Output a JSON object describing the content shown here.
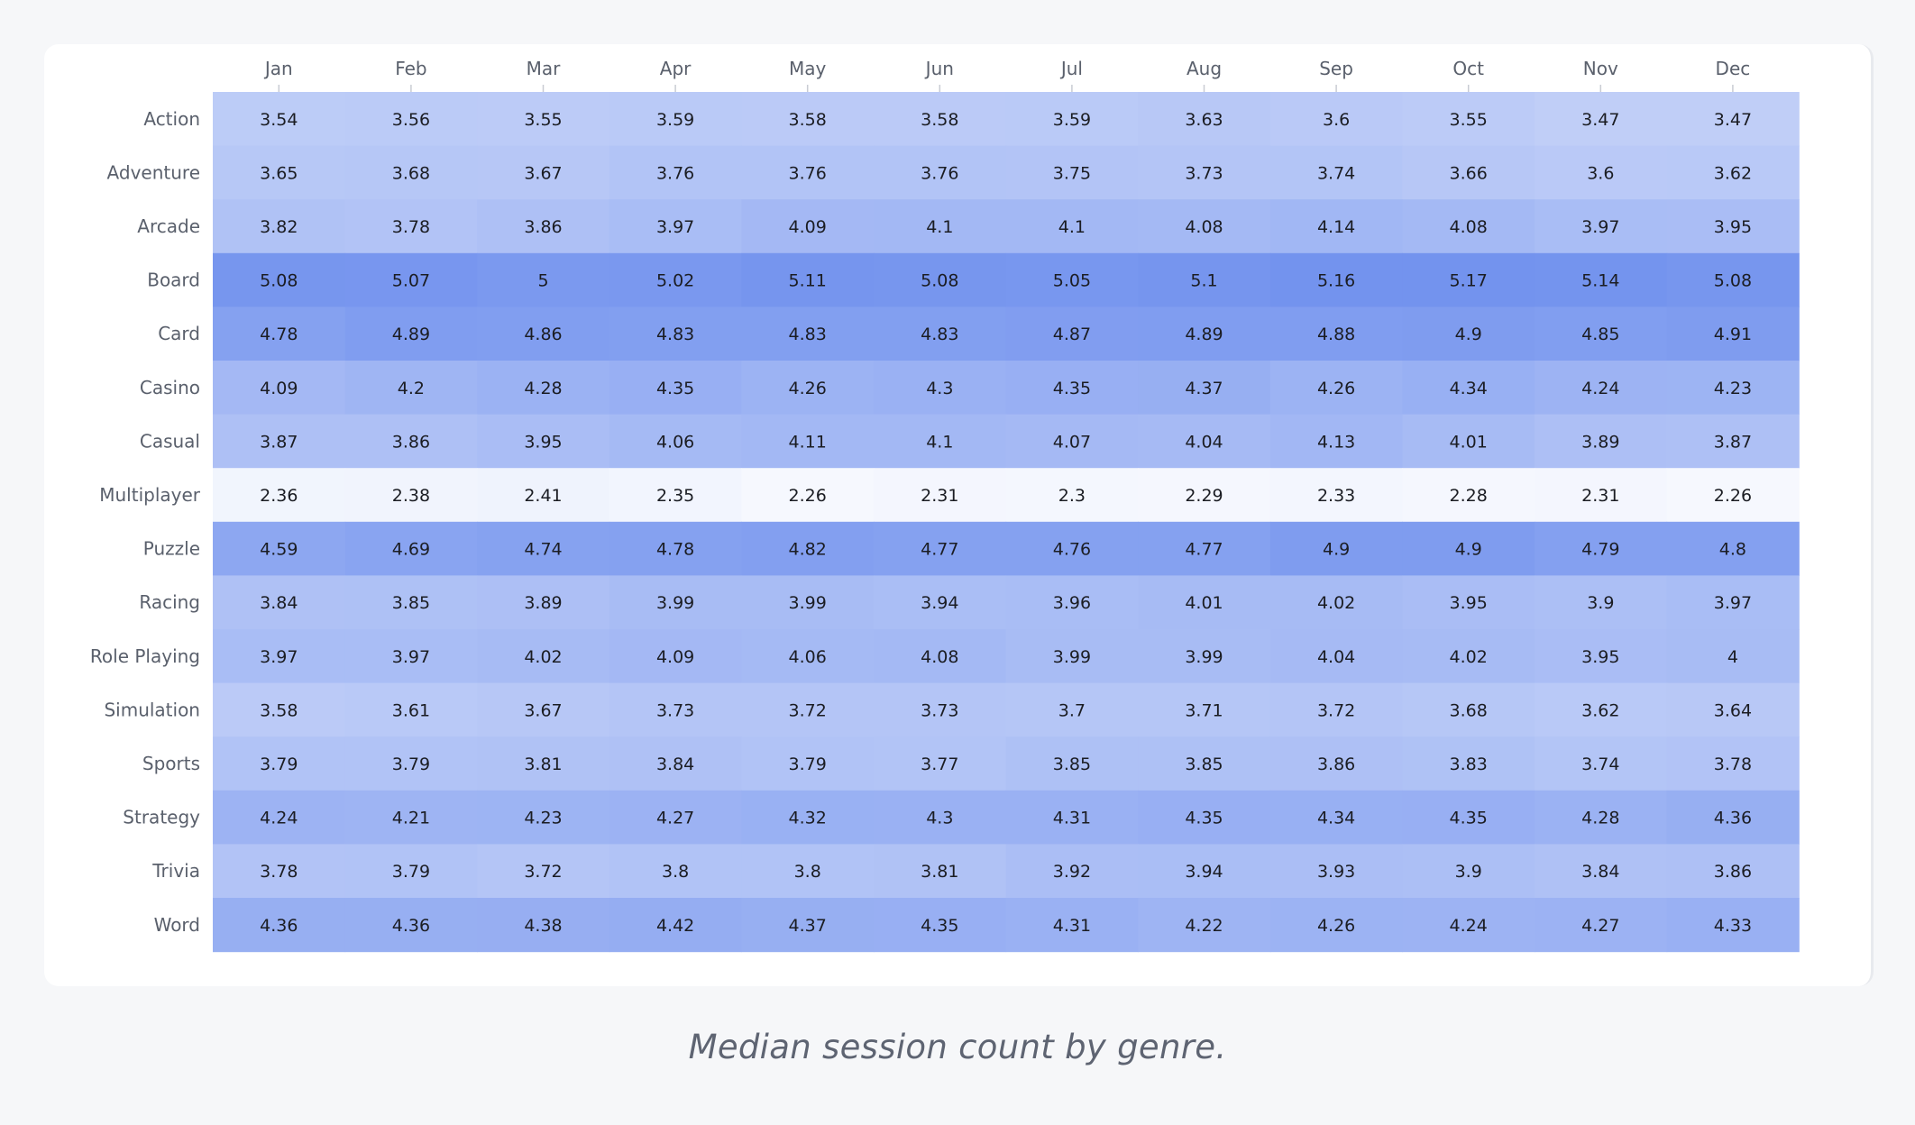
{
  "chart_data": {
    "type": "heatmap",
    "x_labels": [
      "Jan",
      "Feb",
      "Mar",
      "Apr",
      "May",
      "Jun",
      "Jul",
      "Aug",
      "Sep",
      "Oct",
      "Nov",
      "Dec"
    ],
    "y_labels": [
      "Action",
      "Adventure",
      "Arcade",
      "Board",
      "Card",
      "Casino",
      "Casual",
      "Multiplayer",
      "Puzzle",
      "Racing",
      "Role Playing",
      "Simulation",
      "Sports",
      "Strategy",
      "Trivia",
      "Word"
    ],
    "values": [
      [
        3.54,
        3.56,
        3.55,
        3.59,
        3.58,
        3.58,
        3.59,
        3.63,
        3.6,
        3.55,
        3.47,
        3.47
      ],
      [
        3.65,
        3.68,
        3.67,
        3.76,
        3.76,
        3.76,
        3.75,
        3.73,
        3.74,
        3.66,
        3.6,
        3.62
      ],
      [
        3.82,
        3.78,
        3.86,
        3.97,
        4.09,
        4.1,
        4.1,
        4.08,
        4.14,
        4.08,
        3.97,
        3.95
      ],
      [
        5.08,
        5.07,
        5,
        5.02,
        5.11,
        5.08,
        5.05,
        5.1,
        5.16,
        5.17,
        5.14,
        5.08
      ],
      [
        4.78,
        4.89,
        4.86,
        4.83,
        4.83,
        4.83,
        4.87,
        4.89,
        4.88,
        4.9,
        4.85,
        4.91
      ],
      [
        4.09,
        4.2,
        4.28,
        4.35,
        4.26,
        4.3,
        4.35,
        4.37,
        4.26,
        4.34,
        4.24,
        4.23
      ],
      [
        3.87,
        3.86,
        3.95,
        4.06,
        4.11,
        4.1,
        4.07,
        4.04,
        4.13,
        4.01,
        3.89,
        3.87
      ],
      [
        2.36,
        2.38,
        2.41,
        2.35,
        2.26,
        2.31,
        2.3,
        2.29,
        2.33,
        2.28,
        2.31,
        2.26
      ],
      [
        4.59,
        4.69,
        4.74,
        4.78,
        4.82,
        4.77,
        4.76,
        4.77,
        4.9,
        4.9,
        4.79,
        4.8
      ],
      [
        3.84,
        3.85,
        3.89,
        3.99,
        3.99,
        3.94,
        3.96,
        4.01,
        4.02,
        3.95,
        3.9,
        3.97
      ],
      [
        3.97,
        3.97,
        4.02,
        4.09,
        4.06,
        4.08,
        3.99,
        3.99,
        4.04,
        4.02,
        3.95,
        4
      ],
      [
        3.58,
        3.61,
        3.67,
        3.73,
        3.72,
        3.73,
        3.7,
        3.71,
        3.72,
        3.68,
        3.62,
        3.64
      ],
      [
        3.79,
        3.79,
        3.81,
        3.84,
        3.79,
        3.77,
        3.85,
        3.85,
        3.86,
        3.83,
        3.74,
        3.78
      ],
      [
        4.24,
        4.21,
        4.23,
        4.27,
        4.32,
        4.3,
        4.31,
        4.35,
        4.34,
        4.35,
        4.28,
        4.36
      ],
      [
        3.78,
        3.79,
        3.72,
        3.8,
        3.8,
        3.81,
        3.92,
        3.94,
        3.93,
        3.9,
        3.84,
        3.86
      ],
      [
        4.36,
        4.36,
        4.38,
        4.42,
        4.37,
        4.35,
        4.31,
        4.22,
        4.26,
        4.24,
        4.27,
        4.33
      ]
    ],
    "color_low": "#f6f8fe",
    "color_high": "#7393ee",
    "text_color": "#1b1d23",
    "label_color": "#5a606c",
    "caption": "Median session count by genre."
  }
}
